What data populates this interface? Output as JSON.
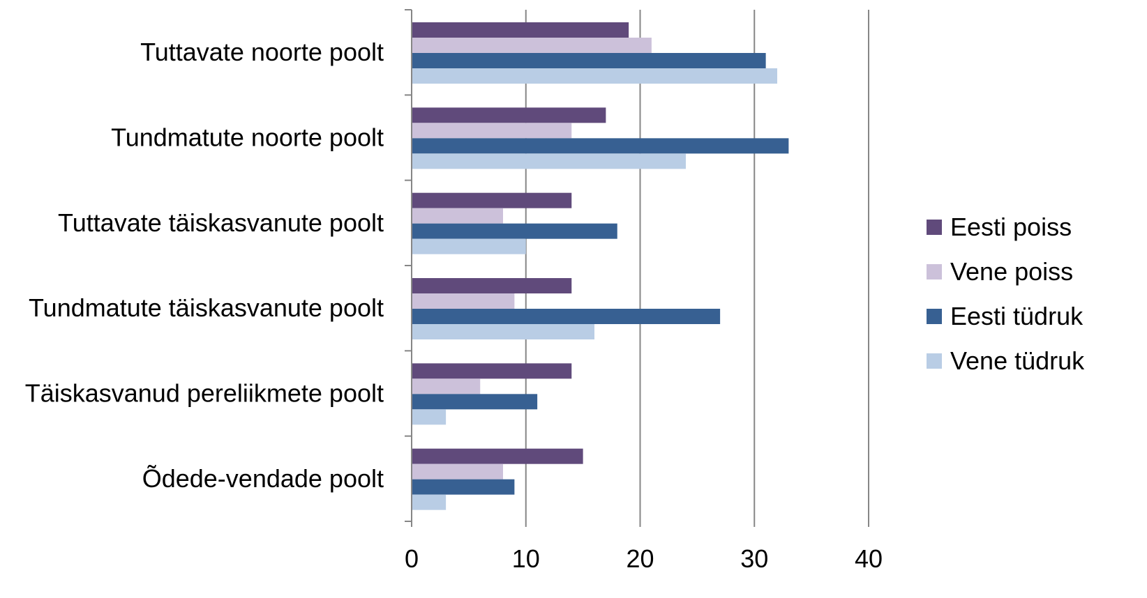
{
  "chart_data": {
    "type": "bar",
    "orientation": "horizontal",
    "categories": [
      "Tuttavate noorte poolt",
      "Tundmatute noorte poolt",
      "Tuttavate täiskasvanute poolt",
      "Tundmatute täiskasvanute poolt",
      "Täiskasvanud pereliikmete poolt",
      "Õdede-vendade poolt"
    ],
    "series": [
      {
        "name": "Eesti poiss",
        "color": "#604a7b",
        "values": [
          19,
          17,
          14,
          14,
          14,
          15
        ]
      },
      {
        "name": "Vene poiss",
        "color": "#ccc1da",
        "values": [
          21,
          14,
          8,
          9,
          6,
          8
        ]
      },
      {
        "name": "Eesti tüdruk",
        "color": "#376092",
        "values": [
          31,
          33,
          18,
          27,
          11,
          9
        ]
      },
      {
        "name": "Vene tüdruk",
        "color": "#b9cde5",
        "values": [
          32,
          24,
          10,
          16,
          3,
          3
        ]
      }
    ],
    "xlim": [
      0,
      40
    ],
    "xticks": [
      "0",
      "10",
      "20",
      "30",
      "40"
    ],
    "grid": true,
    "legend_position": "right",
    "title": "",
    "xlabel": "",
    "ylabel": ""
  }
}
